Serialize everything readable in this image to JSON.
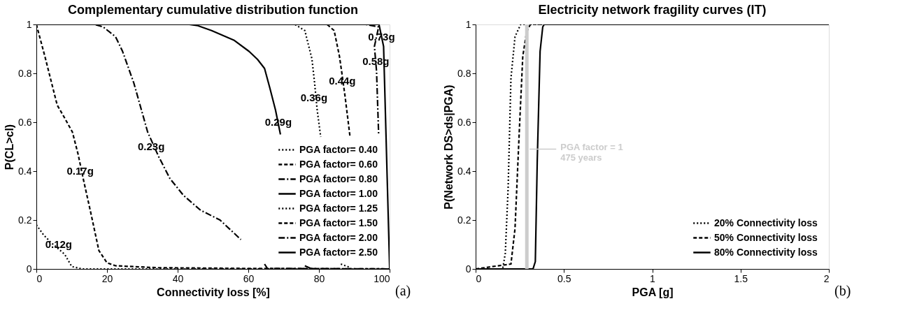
{
  "chart_data": [
    {
      "type": "line",
      "title": "Complementary cumulative distribution function",
      "xlabel": "Connectivity loss [%]",
      "ylabel": "P(CL>cl)",
      "xlim": [
        0,
        100
      ],
      "xticks": [
        0,
        20,
        40,
        60,
        80,
        100
      ],
      "ylim": [
        0,
        1
      ],
      "yticks": [
        0,
        0.2,
        0.4,
        0.6,
        0.8,
        1
      ],
      "legend": "bottom right",
      "series": [
        {
          "name": "PGA factor= 0.40",
          "color": "#000000",
          "line_style": "dotted",
          "x": [
            0,
            2,
            4,
            8,
            10,
            13,
            100
          ],
          "values": [
            0.18,
            0.14,
            0.11,
            0.06,
            0.01,
            0,
            0
          ]
        },
        {
          "name": "PGA factor= 0.60",
          "color": "#000000",
          "line_style": "dashed",
          "x": [
            0,
            2.4,
            5.9,
            7.9,
            10.2,
            11.8,
            13.4,
            15.4,
            17.7,
            20,
            22.4,
            34,
            60,
            100
          ],
          "values": [
            1,
            0.87,
            0.67,
            0.62,
            0.56,
            0.47,
            0.36,
            0.23,
            0.075,
            0.025,
            0.013,
            0.005,
            0.002,
            0
          ]
        },
        {
          "name": "PGA factor= 0.80",
          "color": "#000000",
          "line_style": "dashdot",
          "x": [
            0,
            16.5,
            18.9,
            22.4,
            24.4,
            27.6,
            31.5,
            34.6,
            37.8,
            41.7,
            46.5,
            52,
            57.9,
            62,
            64.6,
            65.4,
            100
          ],
          "values": [
            1,
            1,
            0.99,
            0.95,
            0.89,
            0.76,
            0.56,
            0.46,
            0.37,
            0.3,
            0.24,
            0.2,
            0.12,
            null,
            0.02,
            0.002,
            0
          ]
        },
        {
          "name": "PGA factor= 1.00",
          "color": "#000000",
          "line_style": "solid",
          "x": [
            0,
            43.3,
            45.7,
            49.6,
            55.9,
            60.2,
            62.6,
            64.6,
            66.1,
            67.7,
            69.1,
            72,
            76,
            78
          ],
          "values": [
            1,
            1,
            0.995,
            0.975,
            0.936,
            0.89,
            0.857,
            0.82,
            0.74,
            0.65,
            0.55,
            null,
            0.013,
            0
          ]
        },
        {
          "name": "PGA factor= 1.25",
          "color": "#000000",
          "line_style": "dotted",
          "x": [
            0,
            73.2,
            76,
            78,
            78.7,
            79.5,
            80.5,
            83,
            86.2,
            89
          ],
          "values": [
            1,
            1,
            0.975,
            0.86,
            0.77,
            0.65,
            0.54,
            null,
            0.02,
            0.005
          ]
        },
        {
          "name": "PGA factor= 1.50",
          "color": "#000000",
          "line_style": "dashed",
          "x": [
            0,
            82.3,
            84.3,
            85.8,
            86.5,
            87.4,
            88.8
          ],
          "values": [
            1,
            1,
            0.975,
            0.87,
            0.8,
            0.705,
            0.54
          ]
        },
        {
          "name": "PGA factor= 2.00",
          "color": "#000000",
          "line_style": "dashdot",
          "x": [
            0,
            93.3,
            96.9,
            95.7,
            96.3,
            96.9
          ],
          "values": [
            1,
            1,
            0.99,
            0.91,
            0.81,
            0.55
          ]
        },
        {
          "name": "PGA factor= 2.50",
          "color": "#000000",
          "line_style": "solid",
          "x": [
            0,
            97,
            98.3,
            100,
            100
          ],
          "values": [
            1,
            1,
            0.91,
            0.01,
            0
          ]
        }
      ],
      "annotations": [
        {
          "text": "0.12g",
          "x": 6.3,
          "y": 0.1
        },
        {
          "text": "0.17g",
          "x": 12.4,
          "y": 0.4
        },
        {
          "text": "0.23g",
          "x": 32.5,
          "y": 0.5
        },
        {
          "text": "0.29g",
          "x": 68.5,
          "y": 0.6
        },
        {
          "text": "0.36g",
          "x": 78.6,
          "y": 0.7
        },
        {
          "text": "0.44g",
          "x": 86.6,
          "y": 0.77
        },
        {
          "text": "0.58g",
          "x": 96.1,
          "y": 0.85
        },
        {
          "text": "0.73g",
          "x": 97.7,
          "y": 0.95
        },
        "(a)"
      ]
    },
    {
      "type": "line",
      "title": "Electricity network fragility curves (IT)",
      "xlabel": "PGA [g]",
      "ylabel": "P(Network DS>ds|PGA)",
      "xlim": [
        0,
        2
      ],
      "xticks": [
        0,
        0.5,
        1,
        1.5,
        2
      ],
      "ylim": [
        0,
        1
      ],
      "yticks": [
        0,
        0.2,
        0.4,
        0.6,
        0.8,
        1
      ],
      "legend": "bottom right",
      "series": [
        {
          "name": "20% Connectivity loss",
          "color": "#000000",
          "line_style": "dotted",
          "x": [
            0,
            0.153,
            0.168,
            0.184,
            0.2,
            0.223,
            0.255,
            2
          ],
          "values": [
            0,
            0,
            0.064,
            0.33,
            0.78,
            0.95,
            1,
            1
          ]
        },
        {
          "name": "50% Connectivity loss",
          "color": "#000000",
          "line_style": "dashed",
          "x": [
            0,
            0.2,
            0.223,
            0.247,
            0.267,
            0.289,
            0.31,
            2
          ],
          "values": [
            0,
            0.02,
            0.165,
            0.56,
            0.87,
            0.97,
            1,
            1
          ]
        },
        {
          "name": "80% Connectivity loss",
          "color": "#000000",
          "line_style": "solid",
          "x": [
            0,
            0.325,
            0.338,
            0.349,
            0.365,
            0.38,
            0.388,
            2
          ],
          "values": [
            0,
            0,
            0.03,
            0.445,
            0.89,
            0.99,
            1,
            1
          ]
        }
      ],
      "ref_lines": [
        {
          "axis": "x",
          "value": 0.29,
          "color": "#cccccc"
        }
      ],
      "annotations": [
        {
          "text": "PGA factor = 1\n475 years",
          "x": 0.29,
          "y": 0.49
        },
        "(b)"
      ]
    }
  ]
}
